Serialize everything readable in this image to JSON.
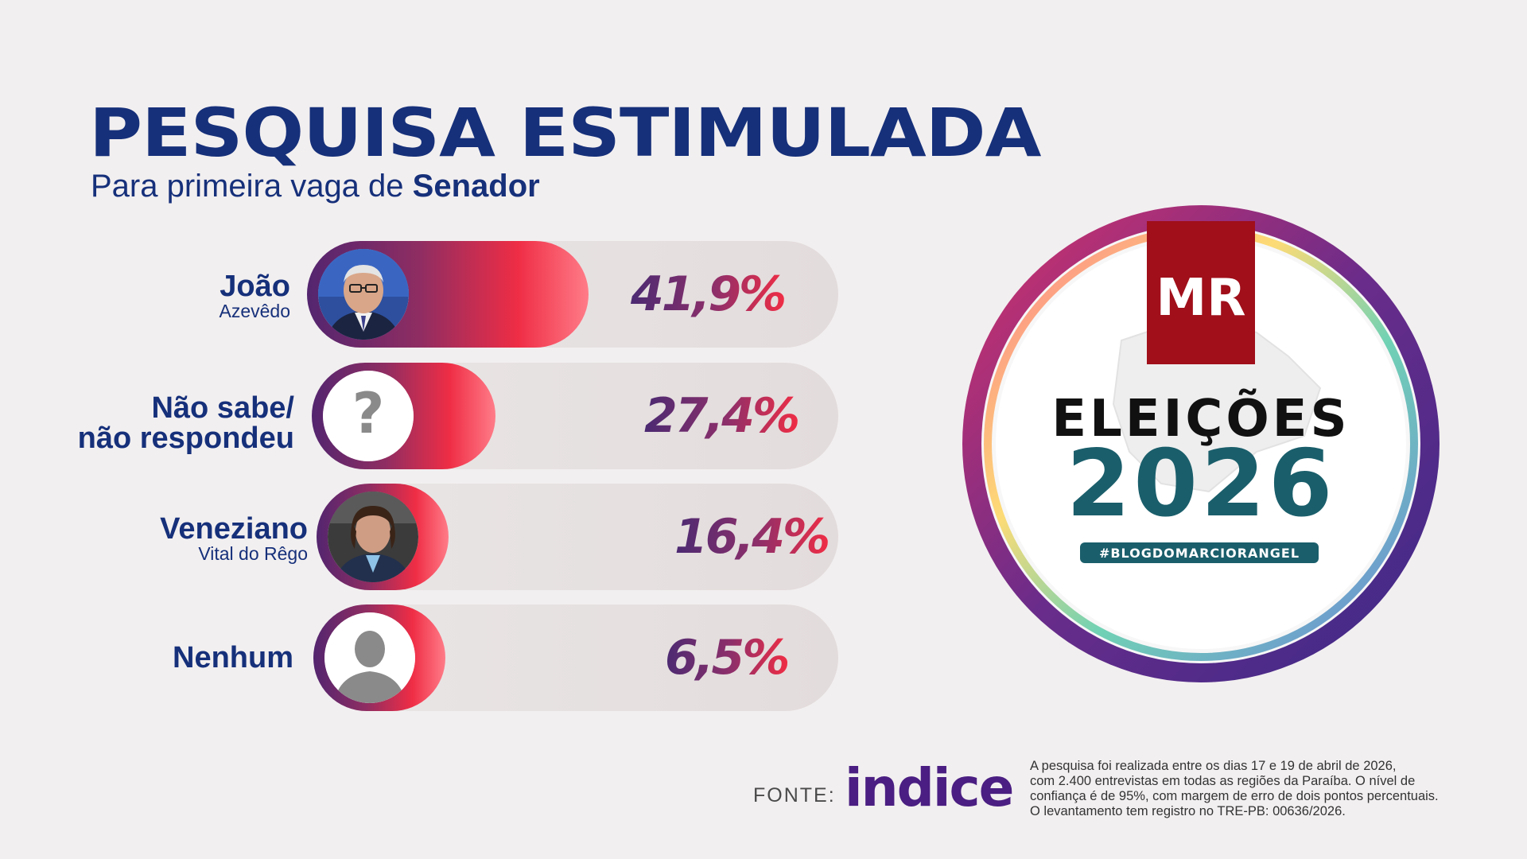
{
  "header": {
    "title": "PESQUISA ESTIMULADA",
    "subtitle_prefix": "Para primeira vaga de",
    "subtitle_bold": "Senador"
  },
  "colors": {
    "title": "#16307a",
    "bar_start": "#53256f",
    "bar_mid": "#8f2d62",
    "bar_end": "#ef2d45",
    "badge_teal": "#1a5e6b",
    "badge_red": "#a00f1a"
  },
  "chart_data": {
    "type": "bar",
    "orientation": "horizontal",
    "title": "PESQUISA ESTIMULADA",
    "subtitle": "Para primeira vaga de Senador",
    "categories": [
      "João Azevêdo",
      "Não sabe/ não respondeu",
      "Veneziano Vital do Rêgo",
      "Nenhum"
    ],
    "values": [
      41.9,
      27.4,
      16.4,
      6.5
    ],
    "unit": "%",
    "grid": false,
    "legend": "none"
  },
  "rows": [
    {
      "name": "João",
      "subname": "Azevêdo",
      "pct": "41,9%",
      "value": 41.9,
      "icon": "politician-photo"
    },
    {
      "name": "Não sabe/",
      "subname": "não respondeu",
      "pct": "27,4%",
      "value": 27.4,
      "icon": "question-mark-icon"
    },
    {
      "name": "Veneziano",
      "subname": "Vital do Rêgo",
      "pct": "16,4%",
      "value": 16.4,
      "icon": "politician-photo"
    },
    {
      "name": "Nenhum",
      "subname": "",
      "pct": "6,5%",
      "value": 6.5,
      "icon": "person-silhouette-icon"
    }
  ],
  "badge": {
    "mr": "MR",
    "eleicoes": "ELEIÇÕES",
    "year": "2026",
    "hashtag": "#BLOGDOMARCIORANGEL"
  },
  "footer": {
    "fonte_label": "FONTE:",
    "source_logo": "indice",
    "notes": [
      "A pesquisa foi realizada entre os dias 17 e 19 de abril de 2026,",
      "com 2.400 entrevistas em todas as regiões da Paraíba. O nível de",
      "confiança é de 95%, com margem de erro de dois pontos percentuais.",
      "O levantamento tem registro no TRE-PB: 00636/2026."
    ]
  }
}
